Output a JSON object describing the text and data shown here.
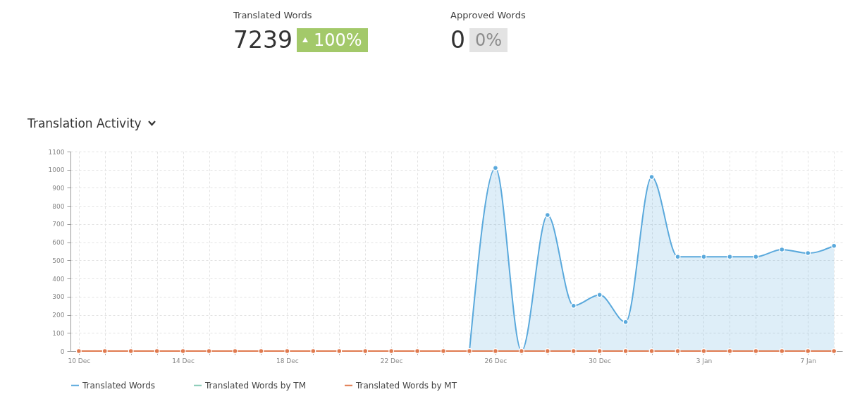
{
  "chart_data": [
    {
      "type": "other",
      "annotations": [
        "Translated Words",
        "7239",
        "100%",
        "Approved Words",
        "0",
        "0%"
      ]
    },
    {
      "type": "line",
      "title": "Translation Activity",
      "categories": [
        "10 Dec",
        null,
        null,
        null,
        "14 Dec",
        null,
        null,
        null,
        "18 Dec",
        null,
        null,
        null,
        "22 Dec",
        null,
        null,
        null,
        "26 Dec",
        null,
        null,
        null,
        "30 Dec",
        null,
        null,
        null,
        "3 Jan",
        null,
        null,
        null,
        "7 Jan",
        null
      ],
      "series": [
        {
          "name": "Translated Words",
          "type": "area",
          "color": "#5aa9dc",
          "values": [
            null,
            null,
            null,
            null,
            null,
            null,
            null,
            null,
            null,
            null,
            null,
            null,
            null,
            null,
            null,
            0,
            1010,
            0,
            750,
            250,
            310,
            160,
            960,
            520,
            520,
            520,
            520,
            560,
            540,
            580
          ]
        },
        {
          "name": "Translated Words by TM",
          "type": "line",
          "color": "#86c9b4",
          "values": [
            null,
            null,
            null,
            null,
            null,
            null,
            null,
            null,
            null,
            null,
            null,
            null,
            null,
            null,
            null,
            null,
            null,
            null,
            null,
            null,
            null,
            null,
            null,
            null,
            null,
            null,
            null,
            null,
            null,
            null
          ]
        },
        {
          "name": "Translated Words by MT",
          "type": "line",
          "color": "#e07a4f",
          "values": [
            0,
            0,
            0,
            0,
            0,
            0,
            0,
            0,
            0,
            0,
            0,
            0,
            0,
            0,
            0,
            0,
            0,
            0,
            0,
            0,
            0,
            0,
            0,
            0,
            0,
            0,
            0,
            0,
            0,
            0
          ]
        }
      ],
      "ylim": [
        0,
        1100
      ],
      "yticks": [
        0,
        100,
        200,
        300,
        400,
        500,
        600,
        700,
        800,
        900,
        1000,
        1100
      ],
      "grid": true,
      "legend": "bottom",
      "marker": "circle"
    }
  ]
}
